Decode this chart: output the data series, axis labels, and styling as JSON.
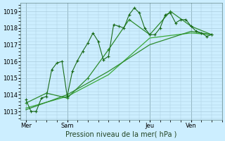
{
  "background_color": "#cceeff",
  "grid_color": "#aaccdd",
  "line_color_main": "#1a6b1a",
  "line_color_smooth1": "#2d8b2d",
  "line_color_smooth2": "#3aaa3a",
  "title": "Pression niveau de la mer( hPa )",
  "ylim": [
    1012.5,
    1019.5
  ],
  "yticks": [
    1013,
    1014,
    1015,
    1016,
    1017,
    1018,
    1019
  ],
  "day_labels": [
    "Mer",
    "Sam",
    "Jeu",
    "Ven"
  ],
  "day_positions": [
    0,
    8,
    24,
    32
  ],
  "series1_x": [
    0,
    1,
    2,
    3,
    4,
    5,
    6,
    7,
    8,
    9,
    10,
    11,
    12,
    13,
    14,
    15,
    16,
    17,
    18,
    19,
    20,
    21,
    22,
    23,
    24,
    25,
    26,
    27,
    28,
    29,
    30,
    31,
    32,
    33,
    34,
    35,
    36
  ],
  "series1_y": [
    1013.7,
    1013.0,
    1013.0,
    1013.8,
    1013.9,
    1015.5,
    1015.9,
    1016.0,
    1013.9,
    1015.4,
    1016.05,
    1016.6,
    1017.1,
    1017.7,
    1017.2,
    1016.1,
    1016.3,
    1018.2,
    1018.1,
    1018.0,
    1018.8,
    1019.2,
    1018.9,
    1018.0,
    1017.6,
    1017.6,
    1018.0,
    1018.8,
    1018.9,
    1018.3,
    1018.5,
    1018.5,
    1018.1,
    1017.8,
    1017.7,
    1017.5,
    1017.6
  ],
  "series2_x": [
    0,
    4,
    8,
    12,
    16,
    20,
    24,
    28,
    32,
    36
  ],
  "series2_y": [
    1013.5,
    1014.1,
    1013.8,
    1015.0,
    1016.7,
    1018.5,
    1017.6,
    1019.0,
    1018.1,
    1017.6
  ],
  "series3_x": [
    0,
    8,
    16,
    24,
    32,
    36
  ],
  "series3_y": [
    1013.2,
    1013.9,
    1015.2,
    1017.4,
    1017.7,
    1017.6
  ],
  "series4_x": [
    0,
    8,
    16,
    24,
    32,
    36
  ],
  "series4_y": [
    1013.1,
    1014.0,
    1015.4,
    1017.0,
    1017.8,
    1017.6
  ]
}
